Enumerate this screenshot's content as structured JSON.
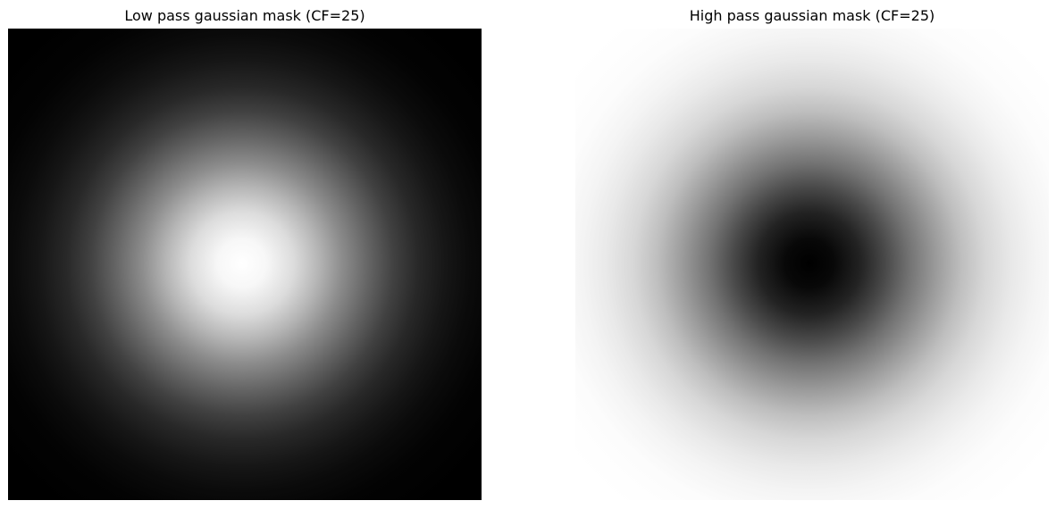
{
  "panels": [
    {
      "title": "Low pass gaussian mask (CF=25)",
      "mask_type": "low-pass",
      "cutoff_frequency": 25,
      "center_color": "#ffffff",
      "edge_color": "#000000"
    },
    {
      "title": "High pass gaussian mask (CF=25)",
      "mask_type": "high-pass",
      "cutoff_frequency": 25,
      "center_color": "#000000",
      "edge_color": "#ffffff"
    }
  ]
}
